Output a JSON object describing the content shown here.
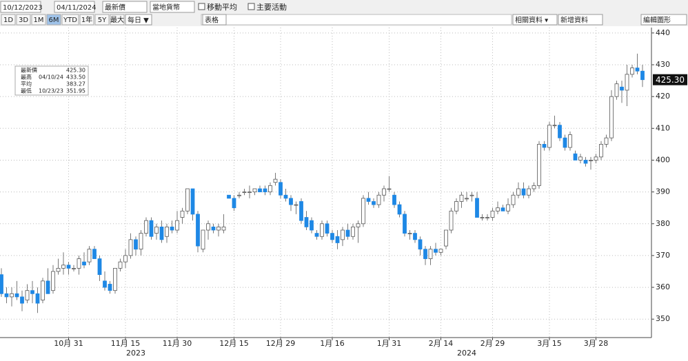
{
  "toolbar": {
    "start_date": "10/12/2023",
    "end_date": "04/11/2024",
    "price_field": "最新價",
    "currency": "當地貨幣",
    "moving_average": "移動平均",
    "key_events": "主要活動",
    "ranges": [
      "1D",
      "3D",
      "1M",
      "6M",
      "YTD",
      "1年",
      "5Y",
      "最大"
    ],
    "frequency": "每日 ▼",
    "table": "表格",
    "related_data": "相關資料 ▾",
    "new_data": "新增資料",
    "edit_chart": "編輯圖形"
  },
  "chart_data": {
    "type": "candlestick",
    "categories": [
      null,
      null,
      null,
      null,
      null,
      null,
      null,
      null,
      null,
      null,
      null,
      null,
      null,
      "10月 31",
      null,
      null,
      null,
      null,
      null,
      null,
      null,
      null,
      null,
      null,
      "11月 15",
      null,
      null,
      null,
      null,
      null,
      null,
      null,
      null,
      null,
      "11月 30",
      null,
      null,
      null,
      null,
      null,
      null,
      null,
      null,
      null,
      null,
      "12月 15",
      null,
      null,
      null,
      null,
      null,
      null,
      null,
      null,
      "12月 29",
      null,
      null,
      null,
      null,
      null,
      null,
      null,
      null,
      null,
      "1月 16",
      null,
      null,
      null,
      null,
      null,
      null,
      null,
      null,
      null,
      null,
      "1月 31",
      null,
      null,
      null,
      null,
      null,
      null,
      null,
      null,
      null,
      "2月 14",
      null,
      null,
      null,
      null,
      null,
      null,
      null,
      null,
      null,
      "2月 29",
      null,
      null,
      null,
      null,
      null,
      null,
      null,
      null,
      null,
      null,
      "3月 15",
      null,
      null,
      null,
      null,
      null,
      null,
      null,
      null,
      "3月 28",
      null,
      null,
      null,
      null,
      null,
      null,
      null,
      null,
      null
    ],
    "year_labels": [
      "2023",
      "2024"
    ],
    "open": [
      364,
      358,
      357,
      358,
      357,
      356,
      359,
      358,
      356,
      362,
      359,
      365,
      366,
      367,
      366,
      366,
      368,
      368,
      372,
      369,
      362,
      361,
      359,
      366,
      368,
      370,
      375,
      372,
      377,
      381,
      377,
      379,
      376,
      379,
      378,
      382,
      384,
      391,
      383,
      372,
      378,
      379,
      378,
      378,
      389,
      388,
      389,
      390,
      390,
      390,
      391,
      391,
      390,
      393,
      393,
      389,
      388,
      386,
      387,
      382,
      381,
      377,
      376,
      380,
      377,
      376,
      375,
      378,
      376,
      379,
      380,
      388,
      387,
      386,
      389,
      391,
      389,
      386,
      383,
      377,
      377,
      375,
      372,
      369,
      372,
      371,
      373,
      378,
      384,
      387,
      388,
      389,
      388,
      382,
      382,
      382,
      384,
      385,
      384,
      386,
      389,
      391,
      389,
      391,
      392,
      405,
      404,
      411,
      411,
      407,
      404,
      402,
      400,
      400,
      400,
      400,
      401,
      405,
      407,
      420,
      423,
      422,
      427,
      429,
      428
    ],
    "high": [
      366,
      360,
      360,
      362,
      359,
      361,
      362,
      360,
      363,
      366,
      367,
      369,
      371,
      368,
      367,
      370,
      371,
      373,
      373,
      370,
      365,
      362,
      366,
      369,
      372,
      377,
      376,
      378,
      382,
      382,
      380,
      381,
      380,
      381,
      384,
      385,
      391,
      391,
      384,
      378,
      381,
      380,
      380,
      383,
      389,
      389,
      390,
      391,
      392,
      391,
      392,
      392,
      393,
      396,
      394,
      391,
      389,
      387,
      388,
      384,
      382,
      378,
      381,
      381,
      378,
      378,
      379,
      380,
      380,
      381,
      389,
      390,
      388,
      390,
      392,
      395,
      390,
      387,
      384,
      378,
      378,
      376,
      373,
      373,
      374,
      372,
      378,
      385,
      388,
      390,
      390,
      390,
      390,
      383,
      383,
      385,
      387,
      386,
      388,
      390,
      393,
      393,
      392,
      393,
      406,
      406,
      412,
      414,
      412,
      408,
      409,
      403,
      402,
      401,
      401,
      402,
      406,
      408,
      422,
      425,
      425,
      430,
      430,
      433.5,
      430
    ],
    "low": [
      357,
      355,
      354,
      356,
      352.5,
      355,
      355,
      351.95,
      355,
      358,
      358,
      364,
      364,
      364,
      365,
      364,
      366,
      367,
      369,
      362,
      359,
      358,
      358,
      365,
      366,
      369,
      370,
      370,
      376,
      375,
      375,
      374,
      374,
      377,
      377,
      380,
      383,
      381,
      371,
      371,
      375,
      377,
      376,
      377,
      388,
      384,
      388,
      389,
      388,
      389,
      390,
      389,
      389,
      392,
      388,
      387,
      384,
      383,
      380,
      378,
      377,
      375,
      375,
      376,
      374,
      372,
      373,
      375,
      375,
      374,
      379,
      386,
      385,
      385,
      387,
      390,
      385,
      382,
      376,
      375,
      374,
      370,
      367,
      367,
      370,
      370,
      372,
      377,
      383,
      385,
      387,
      387,
      382,
      381,
      381,
      381,
      383,
      384,
      383,
      385,
      388,
      388,
      388,
      390,
      391,
      403,
      403,
      410,
      406,
      403,
      403,
      400,
      399,
      398,
      397,
      399,
      400,
      404,
      406,
      419,
      418,
      417,
      426,
      427,
      423
    ],
    "close": [
      358,
      357,
      358,
      357,
      355,
      359,
      358,
      355,
      362,
      358,
      365,
      366,
      367,
      366,
      366,
      369,
      367,
      372,
      369,
      364,
      360,
      359,
      366,
      368,
      370,
      375,
      372,
      377,
      381,
      376,
      379,
      375,
      379,
      378,
      381,
      384,
      391,
      383,
      373,
      378,
      380,
      378,
      379,
      379,
      388,
      385,
      389,
      390,
      390,
      391,
      390,
      390,
      392,
      394,
      389,
      388,
      386,
      386,
      381,
      379,
      378,
      376,
      380,
      377,
      375,
      374,
      378,
      376,
      379,
      380,
      388,
      387,
      386,
      389,
      391,
      391,
      386,
      383,
      377,
      377,
      375,
      372,
      369,
      372,
      371,
      372,
      378,
      384,
      387,
      389,
      388,
      389,
      382,
      382,
      382,
      384,
      385,
      384,
      386,
      389,
      391,
      389,
      391,
      392,
      405,
      404,
      411,
      411,
      407,
      404,
      408,
      400,
      401,
      399,
      400,
      401,
      405,
      407,
      420,
      424,
      422,
      427,
      429,
      428,
      425.3
    ],
    "up_color": "#ffffff",
    "down_color": "#1e88e5",
    "ylim": [
      344.2,
      441.7
    ],
    "yticks": [
      350,
      360,
      370,
      380,
      390,
      400,
      410,
      420,
      430,
      440
    ],
    "grid": true,
    "last_price": {
      "value": 425.3,
      "label": "425.30"
    },
    "legend": [
      {
        "label": "最新價",
        "value": "425.30"
      },
      {
        "label": "最高",
        "date": "04/10/24",
        "value": "433.50"
      },
      {
        "label": "平均",
        "value": "383.27"
      },
      {
        "label": "最低",
        "date": "10/23/23",
        "value": "351.95"
      }
    ]
  }
}
